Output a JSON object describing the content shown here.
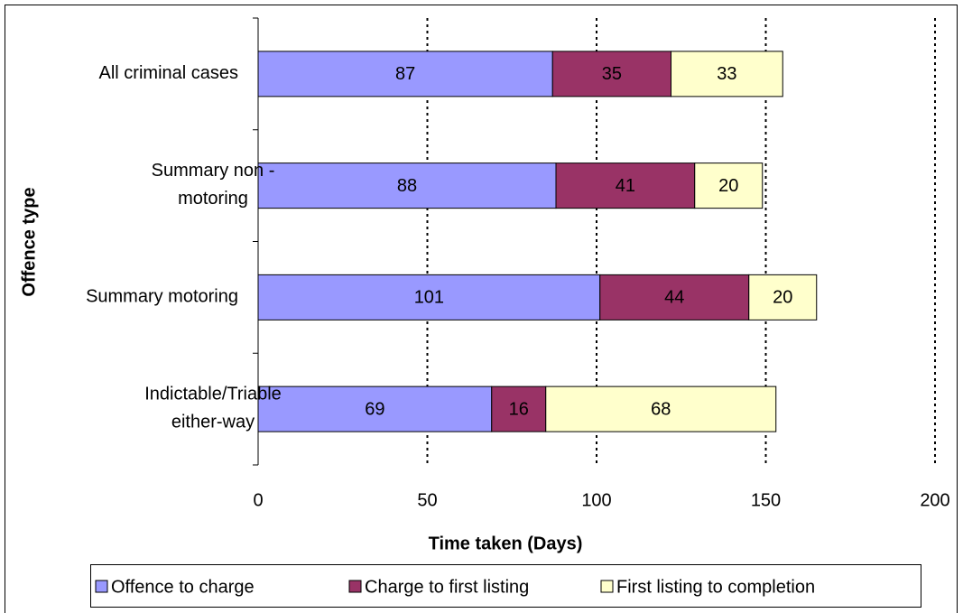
{
  "chart_data": {
    "type": "stacked-barh",
    "x_label": "Time taken (Days)",
    "y_label": "Offence type",
    "categories": [
      "All criminal cases",
      "Summary non -\nmotoring",
      "Summary motoring",
      "Indictable/Triable\neither-way"
    ],
    "series": [
      {
        "name": "Offence to charge",
        "color": "#9999ff",
        "values": [
          87,
          88,
          101,
          69
        ]
      },
      {
        "name": "Charge to first listing",
        "color": "#993366",
        "values": [
          35,
          41,
          44,
          16
        ]
      },
      {
        "name": "First listing to completion",
        "color": "#ffffcc",
        "values": [
          33,
          20,
          20,
          68
        ]
      }
    ],
    "xlim": [
      0,
      200
    ],
    "xticks": [
      0,
      50,
      100,
      150,
      200
    ],
    "grid": true
  }
}
